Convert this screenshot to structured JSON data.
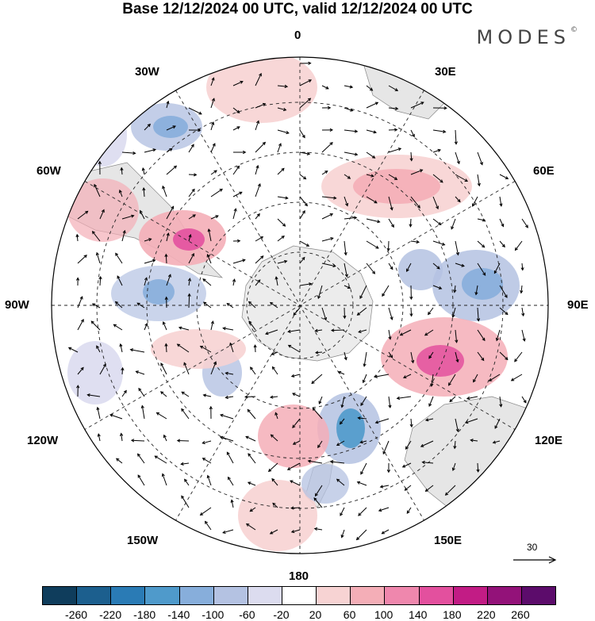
{
  "title": "Base 12/12/2024 00 UTC, valid 12/12/2024 00 UTC",
  "brand": "MODES",
  "brand_mark": "©",
  "meridian_labels": {
    "m0": "0",
    "m30e": "30E",
    "m60e": "60E",
    "m90e": "90E",
    "m120e": "120E",
    "m150e": "150E",
    "m180": "180",
    "m150w": "150W",
    "m120w": "120W",
    "m90w": "90W",
    "m60w": "60W",
    "m30w": "30W"
  },
  "vector_scale": "30",
  "colorbar": {
    "ticks": [
      "-260",
      "-220",
      "-180",
      "-140",
      "-100",
      "-60",
      "-20",
      "20",
      "60",
      "100",
      "140",
      "180",
      "220",
      "260"
    ],
    "colors": [
      "#0f3d5c",
      "#1c5f8e",
      "#2a7bb5",
      "#4f9acb",
      "#87aedb",
      "#b4c2e2",
      "#dcdcef",
      "#ffffff",
      "#f7d3d3",
      "#f4aeb7",
      "#ef87ad",
      "#e3509e",
      "#c21c85",
      "#931279",
      "#5c0c6b"
    ]
  },
  "anomaly_centers": {
    "negative": [
      "#87aedb",
      "#b4c2e2",
      "#dcdcef",
      "#4f9acb"
    ],
    "positive": [
      "#f7d3d3",
      "#f4aeb7",
      "#ef87ad",
      "#e3509e"
    ]
  }
}
